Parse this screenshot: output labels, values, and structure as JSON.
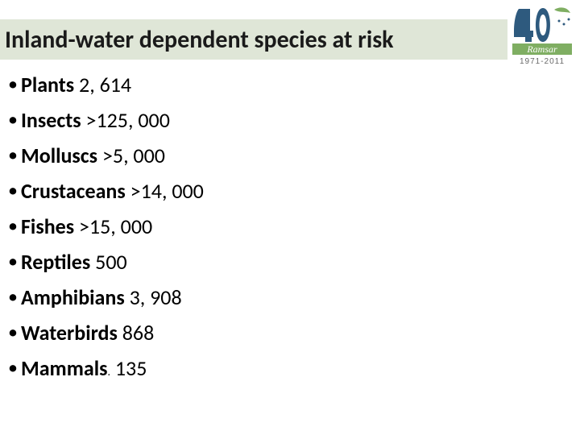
{
  "title": "Inland-water dependent species  at risk",
  "title_bar_bg": "#dfe6d7",
  "title_fontsize": 30,
  "bullet_fontsize": 26,
  "items": [
    {
      "label": "Plants",
      "value": " 2, 614"
    },
    {
      "label": "Insects",
      "value": " >125, 000"
    },
    {
      "label": "Molluscs",
      "value": " >5, 000"
    },
    {
      "label": "Crustaceans",
      "value": " >14, 000"
    },
    {
      "label": "Fishes",
      "value": " >15, 000"
    },
    {
      "label": "Reptiles",
      "value": " 500"
    },
    {
      "label": "Amphibians",
      "value": " 3, 908"
    },
    {
      "label": "Waterbirds",
      "value": " 868"
    },
    {
      "label": "Mammals",
      "value": " 135",
      "period_after_label": true
    }
  ],
  "logo": {
    "forty_fill": "#2e5a7e",
    "banner_fill": "#7fae62",
    "banner_text": "Ramsar",
    "year_text": "1971-2011",
    "year_color": "#6a6a6a"
  }
}
